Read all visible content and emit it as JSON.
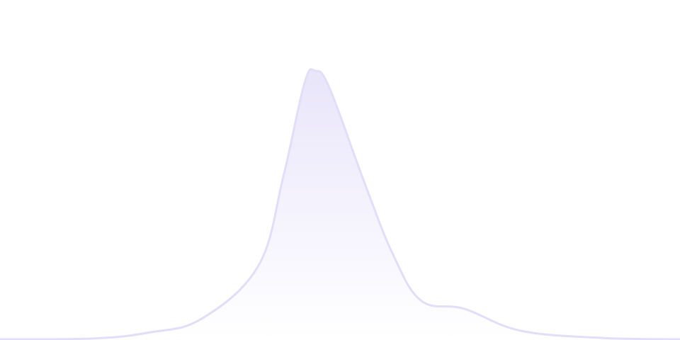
{
  "chart_data": {
    "type": "area",
    "title": "",
    "xlabel": "",
    "ylabel": "",
    "grid": false,
    "legend": "none",
    "x": [
      0,
      130,
      210,
      285,
      365,
      400,
      430,
      445,
      465,
      515,
      555,
      595,
      655,
      735,
      850,
      960
    ],
    "values": [
      0.0,
      0.003,
      0.025,
      0.077,
      0.275,
      0.606,
      0.955,
      1.0,
      0.937,
      0.58,
      0.315,
      0.143,
      0.114,
      0.032,
      0.005,
      0.0
    ],
    "xlim": [
      0,
      960
    ],
    "ylim": [
      0,
      1.005
    ],
    "colors": {
      "stroke": "#e2ddf8",
      "fill_top": "#e9e5fa",
      "fill_bottom": "#ffffff"
    }
  }
}
